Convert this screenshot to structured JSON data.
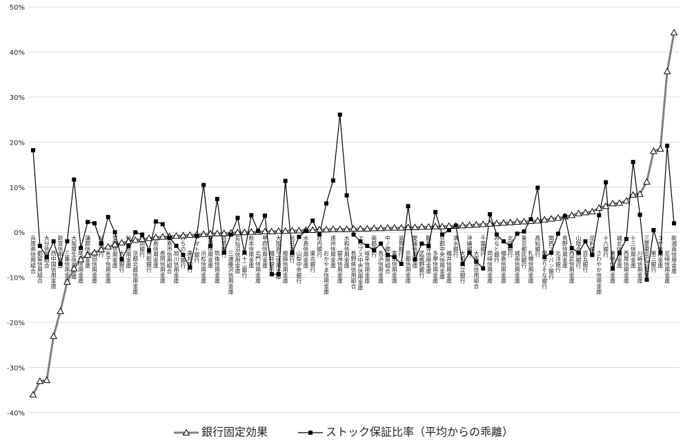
{
  "chart_data": {
    "type": "line",
    "categories": [
      "兵庫県信用組合",
      "都留信用組合",
      "大分信用組合",
      "西中国信用金庫",
      "新宮信用金庫",
      "三重信用金庫",
      "大阪厚生信用金庫",
      "尾西信用金庫",
      "蒲郡信用金庫",
      "島田信用金庫",
      "紀陽銀行",
      "米子信用金庫",
      "室蘭信用金庫",
      "大光銀行",
      "秋田信用金庫",
      "京都北都信用金庫",
      "静岡銀行",
      "鳥取銀行",
      "広島信用金庫",
      "長岡信用金庫",
      "広島市信用組合",
      "旭川信用金庫",
      "みちのく銀行",
      "東邦銀行",
      "トマト銀行",
      "浜松信用金庫",
      "東濃信用金庫",
      "筑後信用金庫",
      "佐賀銀行",
      "三浦藤沢信用金庫",
      "気仙沼信用金庫",
      "八十二銀行",
      "熊本信用金庫",
      "北門信用金庫",
      "甲府信用金庫",
      "福井銀行",
      "大阪商工信用金庫",
      "姫路信用金庫",
      "北日本銀行",
      "山梨中央銀行",
      "水島信用金庫",
      "東北銀行",
      "荘内銀行",
      "おかやま信用金庫",
      "遠州信用金庫",
      "碧海信用金庫",
      "水和信用金庫",
      "長野県信用組合",
      "アルプス中央信用金庫",
      "岐阜信用金庫",
      "南都銀行",
      "長浜信用金庫",
      "中ノ郷信用組合",
      "富山信用金庫",
      "滋賀銀行",
      "京都信用金庫",
      "愛媛信用金庫",
      "武蔵野銀行",
      "観音寺信用金庫",
      "多摩信用金庫",
      "京都中央信用金庫",
      "福井信用金庫",
      "清水銀行",
      "大垣共立銀行",
      "沖縄銀行",
      "大東京信用組合",
      "千葉銀行",
      "岡崎信用金庫",
      "みなと銀行",
      "福島信用金庫",
      "北陸銀行",
      "城南信用金庫",
      "東京都民銀行",
      "札幌信用金庫",
      "高知銀行",
      "埼玉りそな銀行",
      "関西アーバン銀行",
      "北洋銀行",
      "長野信用金庫",
      "西武信用金庫",
      "山陰合同銀行",
      "百五銀行",
      "足利銀行",
      "さわやか信用金庫",
      "十六銀行",
      "巣鴨信用金庫",
      "城北信用金庫",
      "西尾信用金庫",
      "十三信用金庫",
      "川崎信用金庫",
      "三菱東京UFJ銀行",
      "第三銀行",
      "コザ信用金庫",
      "尼崎信用金庫",
      "新湘南信用金庫"
    ],
    "series": [
      {
        "name": "銀行固定効果",
        "color": "#808080",
        "marker": "triangle",
        "values": [
          -36,
          -33,
          -32.8,
          -23,
          -17.5,
          -11,
          -8,
          -6,
          -5,
          -4.5,
          -3.8,
          -3.2,
          -2.7,
          -2.3,
          -2,
          -1.7,
          -1.5,
          -1.3,
          -1.1,
          -1,
          -0.9,
          -0.8,
          -0.7,
          -0.6,
          -0.5,
          -0.4,
          -0.3,
          -0.25,
          -0.2,
          -0.1,
          0,
          0,
          0.1,
          0.1,
          0.2,
          0.2,
          0.3,
          0.3,
          0.4,
          0.4,
          0.5,
          0.5,
          0.6,
          0.6,
          0.7,
          0.7,
          0.7,
          0.8,
          0.8,
          0.8,
          0.9,
          0.9,
          1,
          1,
          1,
          1.1,
          1.1,
          1.2,
          1.2,
          1.3,
          1.3,
          1.4,
          1.4,
          1.5,
          1.6,
          1.7,
          1.8,
          1.9,
          2,
          2.1,
          2.2,
          2.3,
          2.4,
          2.5,
          2.6,
          2.8,
          3,
          3.2,
          3.5,
          3.8,
          4.2,
          4.4,
          4.6,
          5.4,
          5.8,
          6.4,
          6.5,
          7,
          8.3,
          8.5,
          11.2,
          18,
          18.5,
          35.7,
          44.3
        ]
      },
      {
        "name": "ストック保証比率（平均からの乖離）",
        "color": "#000000",
        "marker": "square",
        "values": [
          18.2,
          -3,
          -5.5,
          -2,
          -7,
          -2,
          11.7,
          -3.5,
          2.3,
          2,
          -2.5,
          3.4,
          0,
          -6,
          -3,
          0,
          -0.5,
          -4,
          2.4,
          1.8,
          -1.2,
          -3,
          -5,
          -7.8,
          -0.8,
          10.5,
          -3,
          7.4,
          -4.5,
          -0.5,
          3.2,
          -4.5,
          3.8,
          0.3,
          3.7,
          -9.3,
          -9.3,
          11.4,
          -4.5,
          -1,
          0.3,
          2.6,
          -0.5,
          6.4,
          11.5,
          26.1,
          8.2,
          -0.5,
          -2,
          -3,
          -4,
          -2.5,
          -5,
          -5.5,
          -7,
          5.8,
          -6,
          -2.5,
          -3,
          4.5,
          -0.5,
          0.5,
          1.5,
          -7,
          -4.5,
          -6.5,
          -8,
          4,
          -0.5,
          -2,
          -3,
          -0.3,
          0.2,
          2.9,
          9.9,
          -5.5,
          -4.5,
          -0.3,
          3.6,
          -3.5,
          -4.5,
          -2,
          -5,
          3.8,
          11.1,
          -8,
          -4.5,
          -1.5,
          15.6,
          3.9,
          -10.5,
          0.5,
          -4.5,
          19.2,
          2
        ]
      }
    ],
    "ylim": [
      -40,
      50
    ],
    "yticks": [
      {
        "value": -40,
        "label": "-40%"
      },
      {
        "value": -30,
        "label": "-30%"
      },
      {
        "value": -20,
        "label": "-20%"
      },
      {
        "value": -10,
        "label": "-10%"
      },
      {
        "value": 0,
        "label": "0%"
      },
      {
        "value": 10,
        "label": "10%"
      },
      {
        "value": 20,
        "label": "20%"
      },
      {
        "value": 30,
        "label": "30%"
      },
      {
        "value": 40,
        "label": "40%"
      },
      {
        "value": 50,
        "label": "50%"
      }
    ],
    "grid": true,
    "legend": "bottom"
  }
}
